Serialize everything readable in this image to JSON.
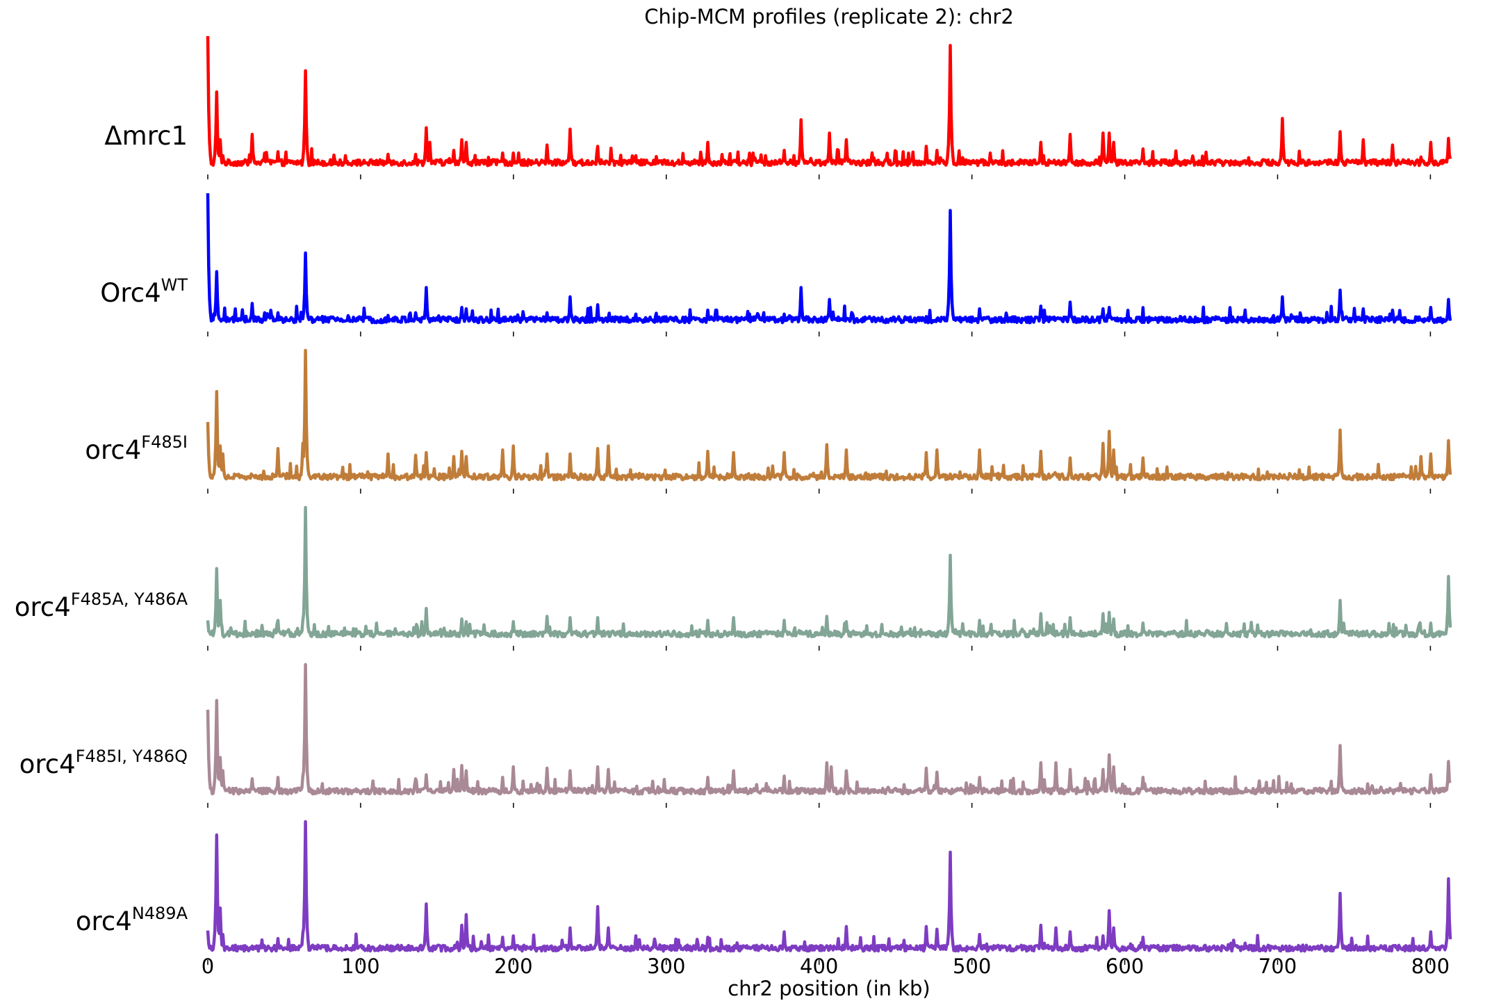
{
  "chart_data": {
    "type": "line",
    "title": "Chip-MCM profiles (replicate 2): chr2",
    "xlabel": "chr2 position (in kb)",
    "ylabel": "",
    "xlim": [
      0,
      813
    ],
    "xticks": [
      0,
      100,
      200,
      300,
      400,
      500,
      600,
      700,
      800
    ],
    "grid": false,
    "series": [
      {
        "name": "Δmrc1",
        "label_base": "Δmrc1",
        "label_sup": "",
        "color": "#ff0000",
        "peaks": [
          [
            0,
            1.0
          ],
          [
            6,
            0.58
          ],
          [
            8,
            0.22
          ],
          [
            10,
            0.1
          ],
          [
            29,
            0.26
          ],
          [
            37,
            0.12
          ],
          [
            46,
            0.13
          ],
          [
            64,
            0.74
          ],
          [
            90,
            0.1
          ],
          [
            118,
            0.11
          ],
          [
            136,
            0.11
          ],
          [
            143,
            0.31
          ],
          [
            145,
            0.2
          ],
          [
            161,
            0.14
          ],
          [
            166,
            0.22
          ],
          [
            169,
            0.2
          ],
          [
            193,
            0.12
          ],
          [
            200,
            0.12
          ],
          [
            222,
            0.18
          ],
          [
            237,
            0.3
          ],
          [
            255,
            0.17
          ],
          [
            280,
            0.1
          ],
          [
            327,
            0.2
          ],
          [
            357,
            0.12
          ],
          [
            377,
            0.14
          ],
          [
            388,
            0.37
          ],
          [
            407,
            0.27
          ],
          [
            418,
            0.22
          ],
          [
            470,
            0.17
          ],
          [
            477,
            0.14
          ],
          [
            486,
            0.93
          ],
          [
            512,
            0.12
          ],
          [
            545,
            0.2
          ],
          [
            564,
            0.26
          ],
          [
            586,
            0.27
          ],
          [
            590,
            0.27
          ],
          [
            593,
            0.2
          ],
          [
            612,
            0.15
          ],
          [
            703,
            0.38
          ],
          [
            741,
            0.28
          ],
          [
            756,
            0.22
          ],
          [
            775,
            0.18
          ],
          [
            794,
            0.09
          ],
          [
            800,
            0.2
          ],
          [
            812,
            0.23
          ]
        ]
      },
      {
        "name": "Orc4WT",
        "label_base": "Orc4",
        "label_sup": "WT",
        "color": "#0000ff",
        "peaks": [
          [
            0,
            1.0
          ],
          [
            6,
            0.41
          ],
          [
            29,
            0.17
          ],
          [
            37,
            0.1
          ],
          [
            46,
            0.1
          ],
          [
            64,
            0.55
          ],
          [
            118,
            0.08
          ],
          [
            136,
            0.1
          ],
          [
            143,
            0.29
          ],
          [
            166,
            0.14
          ],
          [
            169,
            0.13
          ],
          [
            222,
            0.1
          ],
          [
            237,
            0.22
          ],
          [
            255,
            0.16
          ],
          [
            280,
            0.09
          ],
          [
            327,
            0.12
          ],
          [
            377,
            0.09
          ],
          [
            388,
            0.29
          ],
          [
            407,
            0.2
          ],
          [
            486,
            0.87
          ],
          [
            505,
            0.13
          ],
          [
            545,
            0.15
          ],
          [
            564,
            0.18
          ],
          [
            586,
            0.13
          ],
          [
            590,
            0.14
          ],
          [
            703,
            0.22
          ],
          [
            741,
            0.27
          ],
          [
            756,
            0.13
          ],
          [
            775,
            0.12
          ],
          [
            800,
            0.14
          ],
          [
            812,
            0.2
          ]
        ]
      },
      {
        "name": "orc4F485I",
        "label_base": "orc4",
        "label_sup": "F485I",
        "color": "#c07d3a",
        "peaks": [
          [
            0,
            0.46
          ],
          [
            6,
            0.69
          ],
          [
            8,
            0.28
          ],
          [
            10,
            0.22
          ],
          [
            46,
            0.26
          ],
          [
            62,
            0.3
          ],
          [
            64,
            1.0
          ],
          [
            118,
            0.22
          ],
          [
            136,
            0.21
          ],
          [
            143,
            0.23
          ],
          [
            161,
            0.2
          ],
          [
            166,
            0.24
          ],
          [
            169,
            0.2
          ],
          [
            193,
            0.25
          ],
          [
            200,
            0.28
          ],
          [
            222,
            0.22
          ],
          [
            237,
            0.22
          ],
          [
            255,
            0.26
          ],
          [
            262,
            0.28
          ],
          [
            327,
            0.24
          ],
          [
            344,
            0.23
          ],
          [
            377,
            0.23
          ],
          [
            405,
            0.29
          ],
          [
            418,
            0.25
          ],
          [
            470,
            0.23
          ],
          [
            477,
            0.25
          ],
          [
            505,
            0.25
          ],
          [
            545,
            0.24
          ],
          [
            564,
            0.19
          ],
          [
            586,
            0.3
          ],
          [
            590,
            0.39
          ],
          [
            593,
            0.25
          ],
          [
            612,
            0.19
          ],
          [
            741,
            0.4
          ],
          [
            794,
            0.2
          ],
          [
            800,
            0.22
          ],
          [
            812,
            0.32
          ]
        ]
      },
      {
        "name": "orc4F485A, Y486A",
        "label_base": "orc4",
        "label_sup": "F485A, Y486A",
        "color": "#82a596",
        "peaks": [
          [
            0,
            0.15
          ],
          [
            6,
            0.54
          ],
          [
            8,
            0.3
          ],
          [
            46,
            0.15
          ],
          [
            62,
            0.15
          ],
          [
            64,
            1.0
          ],
          [
            140,
            0.14
          ],
          [
            143,
            0.24
          ],
          [
            166,
            0.16
          ],
          [
            169,
            0.14
          ],
          [
            200,
            0.14
          ],
          [
            222,
            0.18
          ],
          [
            237,
            0.17
          ],
          [
            255,
            0.17
          ],
          [
            327,
            0.15
          ],
          [
            344,
            0.17
          ],
          [
            377,
            0.15
          ],
          [
            405,
            0.18
          ],
          [
            418,
            0.14
          ],
          [
            486,
            0.64
          ],
          [
            505,
            0.15
          ],
          [
            545,
            0.2
          ],
          [
            564,
            0.17
          ],
          [
            586,
            0.2
          ],
          [
            590,
            0.21
          ],
          [
            593,
            0.16
          ],
          [
            612,
            0.13
          ],
          [
            741,
            0.3
          ],
          [
            800,
            0.13
          ],
          [
            812,
            0.48
          ]
        ]
      },
      {
        "name": "orc4F485I, Y486Q",
        "label_base": "orc4",
        "label_sup": "F485I, Y486Q",
        "color": "#a98996",
        "peaks": [
          [
            0,
            0.66
          ],
          [
            6,
            0.73
          ],
          [
            8,
            0.3
          ],
          [
            10,
            0.2
          ],
          [
            29,
            0.14
          ],
          [
            46,
            0.15
          ],
          [
            62,
            0.16
          ],
          [
            64,
            1.0
          ],
          [
            136,
            0.14
          ],
          [
            143,
            0.17
          ],
          [
            161,
            0.21
          ],
          [
            166,
            0.24
          ],
          [
            169,
            0.2
          ],
          [
            193,
            0.15
          ],
          [
            200,
            0.23
          ],
          [
            222,
            0.22
          ],
          [
            237,
            0.2
          ],
          [
            255,
            0.23
          ],
          [
            262,
            0.21
          ],
          [
            327,
            0.15
          ],
          [
            344,
            0.2
          ],
          [
            377,
            0.16
          ],
          [
            405,
            0.26
          ],
          [
            408,
            0.23
          ],
          [
            418,
            0.2
          ],
          [
            470,
            0.22
          ],
          [
            477,
            0.19
          ],
          [
            505,
            0.15
          ],
          [
            545,
            0.26
          ],
          [
            555,
            0.26
          ],
          [
            564,
            0.21
          ],
          [
            586,
            0.21
          ],
          [
            590,
            0.32
          ],
          [
            593,
            0.23
          ],
          [
            612,
            0.15
          ],
          [
            741,
            0.39
          ],
          [
            800,
            0.17
          ],
          [
            812,
            0.27
          ]
        ]
      },
      {
        "name": "orc4N489A",
        "label_base": "orc4",
        "label_sup": "N489A",
        "color": "#7e3cc2",
        "peaks": [
          [
            0,
            0.18
          ],
          [
            6,
            0.9
          ],
          [
            8,
            0.35
          ],
          [
            10,
            0.15
          ],
          [
            46,
            0.12
          ],
          [
            62,
            0.16
          ],
          [
            64,
            1.0
          ],
          [
            143,
            0.38
          ],
          [
            166,
            0.22
          ],
          [
            169,
            0.3
          ],
          [
            193,
            0.13
          ],
          [
            200,
            0.14
          ],
          [
            237,
            0.2
          ],
          [
            255,
            0.36
          ],
          [
            262,
            0.2
          ],
          [
            280,
            0.14
          ],
          [
            327,
            0.13
          ],
          [
            377,
            0.17
          ],
          [
            418,
            0.21
          ],
          [
            470,
            0.21
          ],
          [
            477,
            0.19
          ],
          [
            486,
            0.77
          ],
          [
            505,
            0.15
          ],
          [
            545,
            0.22
          ],
          [
            555,
            0.2
          ],
          [
            564,
            0.17
          ],
          [
            586,
            0.14
          ],
          [
            590,
            0.33
          ],
          [
            593,
            0.2
          ],
          [
            612,
            0.13
          ],
          [
            741,
            0.46
          ],
          [
            800,
            0.17
          ],
          [
            812,
            0.57
          ]
        ]
      }
    ]
  }
}
